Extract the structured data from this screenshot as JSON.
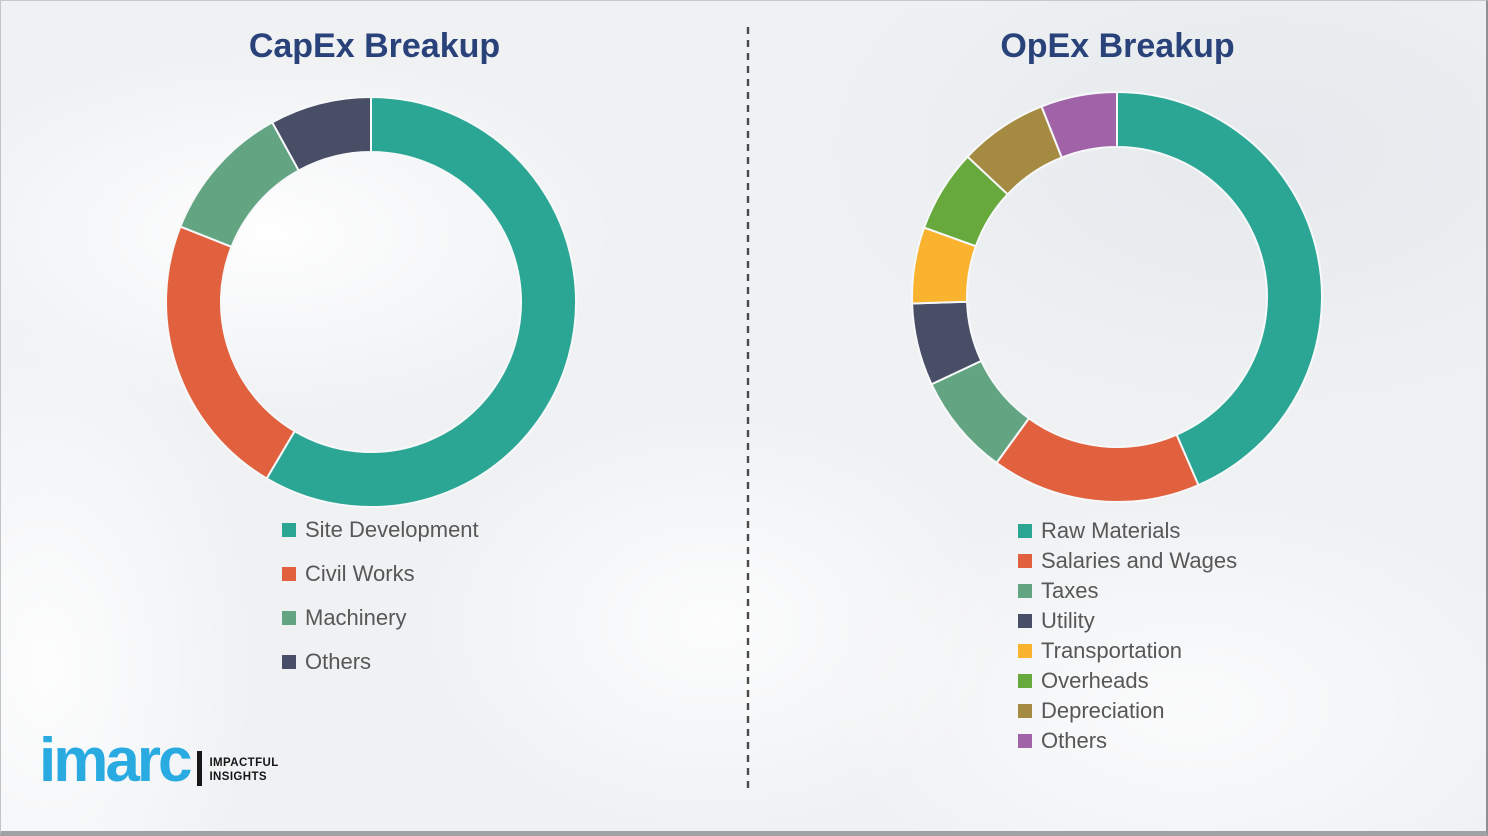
{
  "page": {
    "background_color": "#eff1f3",
    "divider_color": "#4a4a4a",
    "title_color": "#29427A",
    "legend_text_color": "#575757",
    "separator_stroke": "#f7f8f9"
  },
  "chart_data": [
    {
      "type": "pie",
      "variant": "donut",
      "title": "CapEx Breakup",
      "start_angle_deg": 0,
      "direction": "clockwise",
      "inner_radius_ratio": 0.73,
      "legend_position": "below-left",
      "segments": [
        {
          "label": "Site Development",
          "value": 58.5,
          "color": "#2BA695"
        },
        {
          "label": "Civil Works",
          "value": 22.5,
          "color": "#E1613F"
        },
        {
          "label": "Machinery",
          "value": 11,
          "color": "#63A482"
        },
        {
          "label": "Others",
          "value": 8,
          "color": "#474E66"
        }
      ]
    },
    {
      "type": "pie",
      "variant": "donut",
      "title": "OpEx Breakup",
      "start_angle_deg": 0,
      "direction": "clockwise",
      "inner_radius_ratio": 0.73,
      "legend_position": "below-left",
      "segments": [
        {
          "label": "Raw Materials",
          "value": 43.5,
          "color": "#2BA695"
        },
        {
          "label": "Salaries and Wages",
          "value": 16.5,
          "color": "#E1613F"
        },
        {
          "label": "Taxes",
          "value": 8,
          "color": "#63A482"
        },
        {
          "label": "Utility",
          "value": 6.5,
          "color": "#474E66"
        },
        {
          "label": "Transportation",
          "value": 6,
          "color": "#F9B32E"
        },
        {
          "label": "Overheads",
          "value": 6.5,
          "color": "#67A93C"
        },
        {
          "label": "Depreciation",
          "value": 7,
          "color": "#A58A41"
        },
        {
          "label": "Others",
          "value": 6,
          "color": "#A163A8"
        }
      ]
    }
  ],
  "logo": {
    "wordmark": "imarc",
    "wordmark_color": "#29ABE2",
    "tagline_line1": "IMPACTFUL",
    "tagline_line2": "INSIGHTS"
  }
}
